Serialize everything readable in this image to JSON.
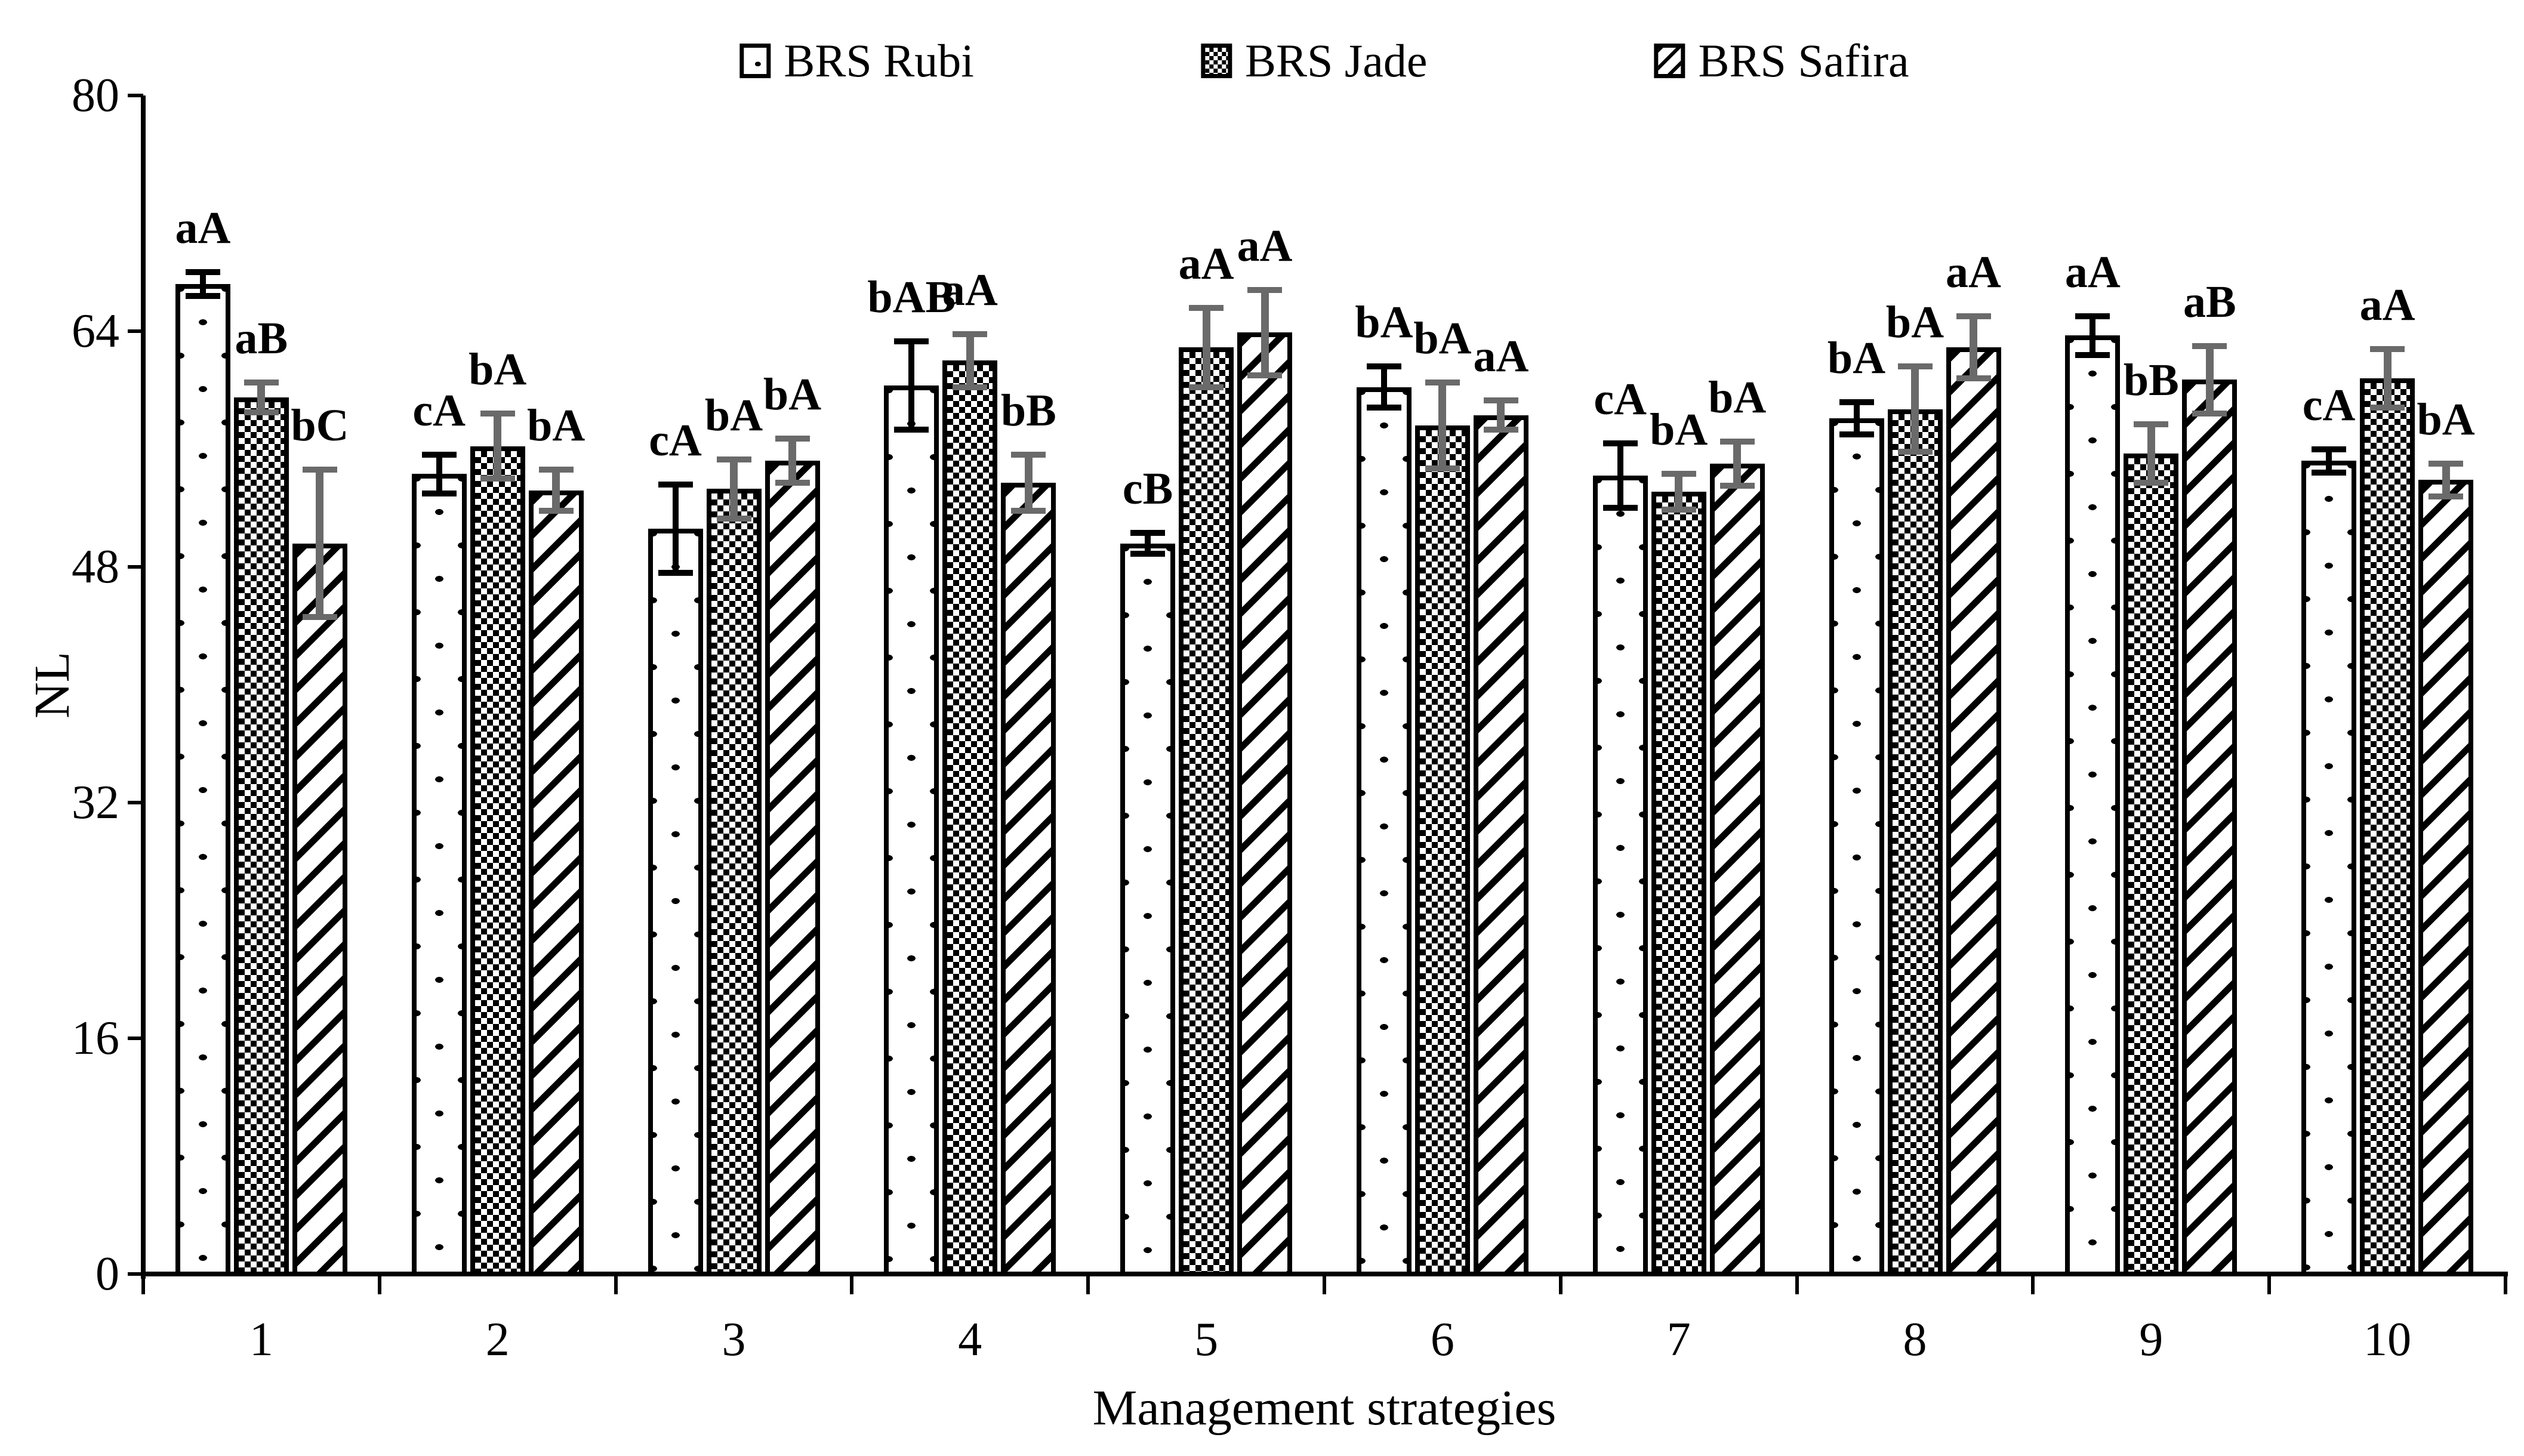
{
  "chart_data": {
    "type": "bar",
    "title": "",
    "xlabel": "Management strategies",
    "ylabel": "NL",
    "ylim": [
      0,
      80
    ],
    "yticks": [
      0,
      16,
      32,
      48,
      64,
      80
    ],
    "categories": [
      "1",
      "2",
      "3",
      "4",
      "5",
      "6",
      "7",
      "8",
      "9",
      "10"
    ],
    "grid": false,
    "legend_position": "top",
    "bar_outline_color": "#000000",
    "bar_fill_color": "#ffffff",
    "series": [
      {
        "name": "BRS Rubi",
        "pattern": "dots",
        "error_color": "#000000",
        "values": [
          67.2,
          54.3,
          50.6,
          60.3,
          49.6,
          60.2,
          54.2,
          58.1,
          63.7,
          55.2
        ],
        "errors": [
          0.8,
          1.3,
          3.0,
          3.0,
          0.7,
          1.4,
          2.2,
          1.1,
          1.3,
          0.8
        ],
        "labels": [
          "aA",
          "cA",
          "cA",
          "bAB",
          "cB",
          "bA",
          "cA",
          "bA",
          "aA",
          "cA"
        ]
      },
      {
        "name": "BRS Jade",
        "pattern": "checker",
        "error_color": "#6a6a6a",
        "values": [
          59.5,
          56.2,
          53.3,
          62.0,
          62.9,
          57.6,
          53.1,
          58.7,
          55.7,
          60.8
        ],
        "errors": [
          1.0,
          2.2,
          2.0,
          1.8,
          2.7,
          2.9,
          1.2,
          2.9,
          2.0,
          2.0
        ],
        "labels": [
          "aB",
          "bA",
          "bA",
          "aA",
          "aA",
          "bA",
          "bA",
          "bA",
          "bB",
          "aA"
        ]
      },
      {
        "name": "BRS Safira",
        "pattern": "stripes",
        "error_color": "#6a6a6a",
        "values": [
          49.6,
          53.2,
          55.2,
          53.7,
          63.9,
          58.3,
          55.0,
          62.9,
          60.7,
          53.9
        ],
        "errors": [
          5.0,
          1.4,
          1.5,
          1.9,
          2.9,
          1.0,
          1.5,
          2.1,
          2.3,
          1.1
        ],
        "labels": [
          "bC",
          "bA",
          "bA",
          "bB",
          "aA",
          "aA",
          "bA",
          "aA",
          "aB",
          "bA"
        ]
      }
    ]
  }
}
